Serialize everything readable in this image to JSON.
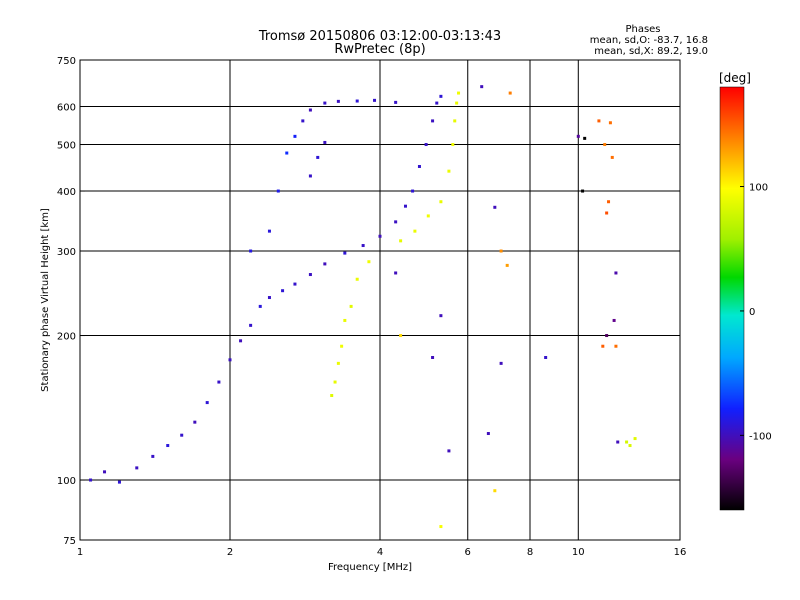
{
  "header": {
    "title_line1": "Tromsø 20150806 03:12:00-03:13:43",
    "title_line2": "RwPretec (8p)"
  },
  "stats": {
    "heading": "Phases",
    "line_o": "mean, sd,O: -83.7, 16.8",
    "line_x": "mean, sd,X:  89.2, 19.0"
  },
  "chart_data": {
    "type": "scatter",
    "xlabel": "Frequency [MHz]",
    "ylabel": "Stationary phase Virtual Height [km]",
    "xscale": "log",
    "yscale": "log",
    "xlim": [
      1,
      16
    ],
    "ylim": [
      75,
      750
    ],
    "x_ticks": [
      1,
      2,
      4,
      6,
      8,
      10,
      16
    ],
    "x_tick_labels": [
      "1",
      "2",
      "4",
      "6",
      "8",
      "10",
      "16"
    ],
    "y_ticks": [
      75,
      100,
      200,
      300,
      400,
      500,
      600,
      750
    ],
    "y_tick_labels": [
      "75",
      "100",
      "200",
      "300",
      "400",
      "500",
      "600",
      "750"
    ],
    "x_gridlines": [
      2,
      4,
      6,
      8,
      10
    ],
    "y_gridlines": [
      100,
      200,
      300,
      400,
      500,
      600
    ],
    "grid": true,
    "colorbar": {
      "label": "[deg]",
      "min": -160,
      "max": 180,
      "ticks": [
        -100,
        0,
        100
      ],
      "tick_labels": [
        "-100",
        "0",
        "100"
      ],
      "colormap": "rainbow"
    },
    "series": [
      {
        "name": "O",
        "points": [
          [
            1.05,
            100,
            -95
          ],
          [
            1.12,
            104,
            -100
          ],
          [
            1.2,
            99,
            -92
          ],
          [
            1.3,
            106,
            -98
          ],
          [
            1.4,
            112,
            -96
          ],
          [
            1.5,
            118,
            -90
          ],
          [
            1.6,
            124,
            -95
          ],
          [
            1.7,
            132,
            -100
          ],
          [
            1.8,
            145,
            -92
          ],
          [
            1.9,
            160,
            -96
          ],
          [
            2.0,
            178,
            -98
          ],
          [
            2.1,
            195,
            -100
          ],
          [
            2.2,
            210,
            -95
          ],
          [
            2.3,
            230,
            -90
          ],
          [
            2.4,
            240,
            -96
          ],
          [
            2.55,
            248,
            -92
          ],
          [
            2.7,
            256,
            -95
          ],
          [
            2.9,
            268,
            -98
          ],
          [
            3.1,
            282,
            -100
          ],
          [
            3.4,
            297,
            -92
          ],
          [
            3.7,
            308,
            -96
          ],
          [
            4.0,
            322,
            -100
          ],
          [
            4.3,
            345,
            -98
          ],
          [
            4.5,
            372,
            -95
          ],
          [
            4.65,
            400,
            -92
          ],
          [
            4.8,
            450,
            -94
          ],
          [
            4.95,
            500,
            -96
          ],
          [
            5.1,
            560,
            -98
          ],
          [
            5.2,
            610,
            -95
          ],
          [
            5.3,
            630,
            -92
          ],
          [
            2.8,
            560,
            -95
          ],
          [
            2.9,
            590,
            -100
          ],
          [
            3.1,
            610,
            -96
          ],
          [
            3.3,
            615,
            -98
          ],
          [
            3.6,
            616,
            -92
          ],
          [
            3.9,
            618,
            -95
          ],
          [
            4.3,
            612,
            -96
          ],
          [
            2.9,
            430,
            -96
          ],
          [
            3.0,
            470,
            -92
          ],
          [
            3.1,
            505,
            -98
          ],
          [
            2.7,
            520,
            -80
          ],
          [
            2.6,
            480,
            -75
          ],
          [
            2.5,
            400,
            -85
          ],
          [
            2.4,
            330,
            -90
          ],
          [
            2.2,
            300,
            -88
          ]
        ]
      },
      {
        "name": "X",
        "points": [
          [
            3.2,
            150,
            85
          ],
          [
            3.25,
            160,
            88
          ],
          [
            3.3,
            175,
            90
          ],
          [
            3.35,
            190,
            92
          ],
          [
            3.4,
            215,
            89
          ],
          [
            3.5,
            230,
            86
          ],
          [
            3.6,
            262,
            90
          ],
          [
            3.8,
            285,
            92
          ],
          [
            4.4,
            315,
            88
          ],
          [
            4.7,
            330,
            90
          ],
          [
            5.0,
            355,
            92
          ],
          [
            5.3,
            380,
            89
          ],
          [
            5.5,
            440,
            90
          ],
          [
            5.6,
            500,
            92
          ],
          [
            5.65,
            560,
            88
          ],
          [
            5.7,
            610,
            90
          ],
          [
            5.75,
            640,
            92
          ],
          [
            6.8,
            95,
            110
          ],
          [
            5.3,
            80,
            95
          ],
          [
            12.5,
            120,
            80
          ],
          [
            12.7,
            118,
            82
          ],
          [
            13.0,
            122,
            85
          ]
        ]
      },
      {
        "name": "scatter",
        "points": [
          [
            6.4,
            660,
            -100
          ],
          [
            7.3,
            640,
            140
          ],
          [
            10.0,
            520,
            -110
          ],
          [
            10.3,
            515,
            -160
          ],
          [
            11.0,
            560,
            150
          ],
          [
            11.6,
            555,
            145
          ],
          [
            11.3,
            500,
            140
          ],
          [
            11.7,
            470,
            145
          ],
          [
            11.5,
            380,
            150
          ],
          [
            11.4,
            360,
            155
          ],
          [
            11.9,
            270,
            -105
          ],
          [
            11.8,
            215,
            -115
          ],
          [
            11.2,
            190,
            150
          ],
          [
            11.9,
            190,
            145
          ],
          [
            11.4,
            200,
            -130
          ],
          [
            12.0,
            120,
            -100
          ],
          [
            7.0,
            300,
            135
          ],
          [
            7.2,
            280,
            130
          ],
          [
            6.8,
            370,
            -100
          ],
          [
            8.6,
            180,
            -95
          ],
          [
            5.3,
            220,
            -100
          ],
          [
            4.3,
            270,
            -100
          ],
          [
            4.4,
            200,
            110
          ],
          [
            6.6,
            125,
            -100
          ],
          [
            7.0,
            175,
            -100
          ],
          [
            5.1,
            180,
            -100
          ],
          [
            5.5,
            115,
            -100
          ],
          [
            10.2,
            400,
            -160
          ]
        ]
      }
    ]
  },
  "colors": {
    "background": "#ffffff",
    "axes": "#000000",
    "grid": "#000000"
  }
}
